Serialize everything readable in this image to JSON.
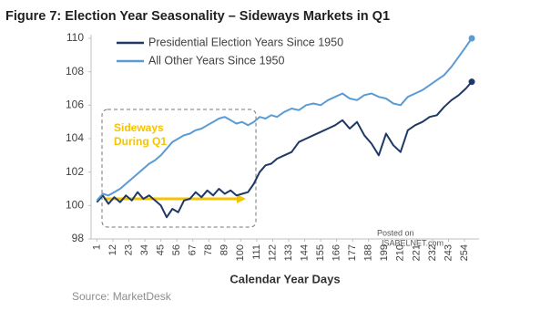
{
  "chart_data": {
    "type": "line",
    "title": "Figure 7: Election Year Seasonality – Sideways Markets in Q1",
    "x_label": "Calendar Year Days",
    "source": "Source: MarketDesk",
    "watermark": [
      "Posted on",
      "ISABELNET.com"
    ],
    "annotation": [
      "Sideways",
      "During Q1"
    ],
    "x": [
      1,
      5,
      9,
      13,
      17,
      21,
      25,
      29,
      33,
      37,
      41,
      45,
      49,
      53,
      57,
      61,
      65,
      69,
      73,
      77,
      81,
      85,
      89,
      93,
      97,
      101,
      105,
      109,
      113,
      117,
      121,
      125,
      130,
      135,
      140,
      145,
      150,
      155,
      160,
      165,
      170,
      175,
      180,
      185,
      190,
      195,
      200,
      205,
      210,
      215,
      220,
      225,
      230,
      235,
      240,
      245,
      250,
      255,
      259
    ],
    "series": [
      {
        "name": "Presidential Election Years Since 1950",
        "color": "#1f3864",
        "values": [
          100.2,
          100.6,
          100.1,
          100.5,
          100.2,
          100.6,
          100.3,
          100.8,
          100.4,
          100.6,
          100.3,
          100.0,
          99.3,
          99.8,
          99.6,
          100.3,
          100.4,
          100.8,
          100.5,
          100.9,
          100.6,
          101.0,
          100.7,
          100.9,
          100.6,
          100.7,
          100.8,
          101.3,
          102.0,
          102.4,
          102.5,
          102.8,
          103.0,
          103.2,
          103.8,
          104.0,
          104.2,
          104.4,
          104.6,
          104.8,
          105.1,
          104.6,
          105.0,
          104.2,
          103.7,
          103.0,
          104.3,
          103.6,
          103.2,
          104.5,
          104.8,
          105.0,
          105.3,
          105.4,
          105.9,
          106.3,
          106.6,
          107.0,
          107.4
        ]
      },
      {
        "name": "All Other Years Since 1950",
        "color": "#5b9bd5",
        "values": [
          100.3,
          100.7,
          100.6,
          100.8,
          101.0,
          101.3,
          101.6,
          101.9,
          102.2,
          102.5,
          102.7,
          103.0,
          103.4,
          103.8,
          104.0,
          104.2,
          104.3,
          104.5,
          104.6,
          104.8,
          105.0,
          105.2,
          105.3,
          105.1,
          104.9,
          105.0,
          104.8,
          105.0,
          105.3,
          105.2,
          105.4,
          105.3,
          105.6,
          105.8,
          105.7,
          106.0,
          106.1,
          106.0,
          106.3,
          106.5,
          106.7,
          106.4,
          106.3,
          106.6,
          106.7,
          106.5,
          106.4,
          106.1,
          106.0,
          106.5,
          106.7,
          106.9,
          107.2,
          107.5,
          107.8,
          108.3,
          108.9,
          109.5,
          110.0
        ]
      }
    ],
    "xlim": [
      -3,
      264
    ],
    "ylim": [
      98,
      110
    ],
    "xticks": [
      1,
      12,
      23,
      34,
      45,
      56,
      67,
      78,
      89,
      100,
      111,
      122,
      133,
      144,
      155,
      166,
      177,
      188,
      199,
      210,
      221,
      232,
      243,
      254
    ],
    "yticks": [
      98,
      100,
      102,
      104,
      106,
      108,
      110
    ],
    "grid": false,
    "legend": "upper left",
    "end_markers": true
  }
}
